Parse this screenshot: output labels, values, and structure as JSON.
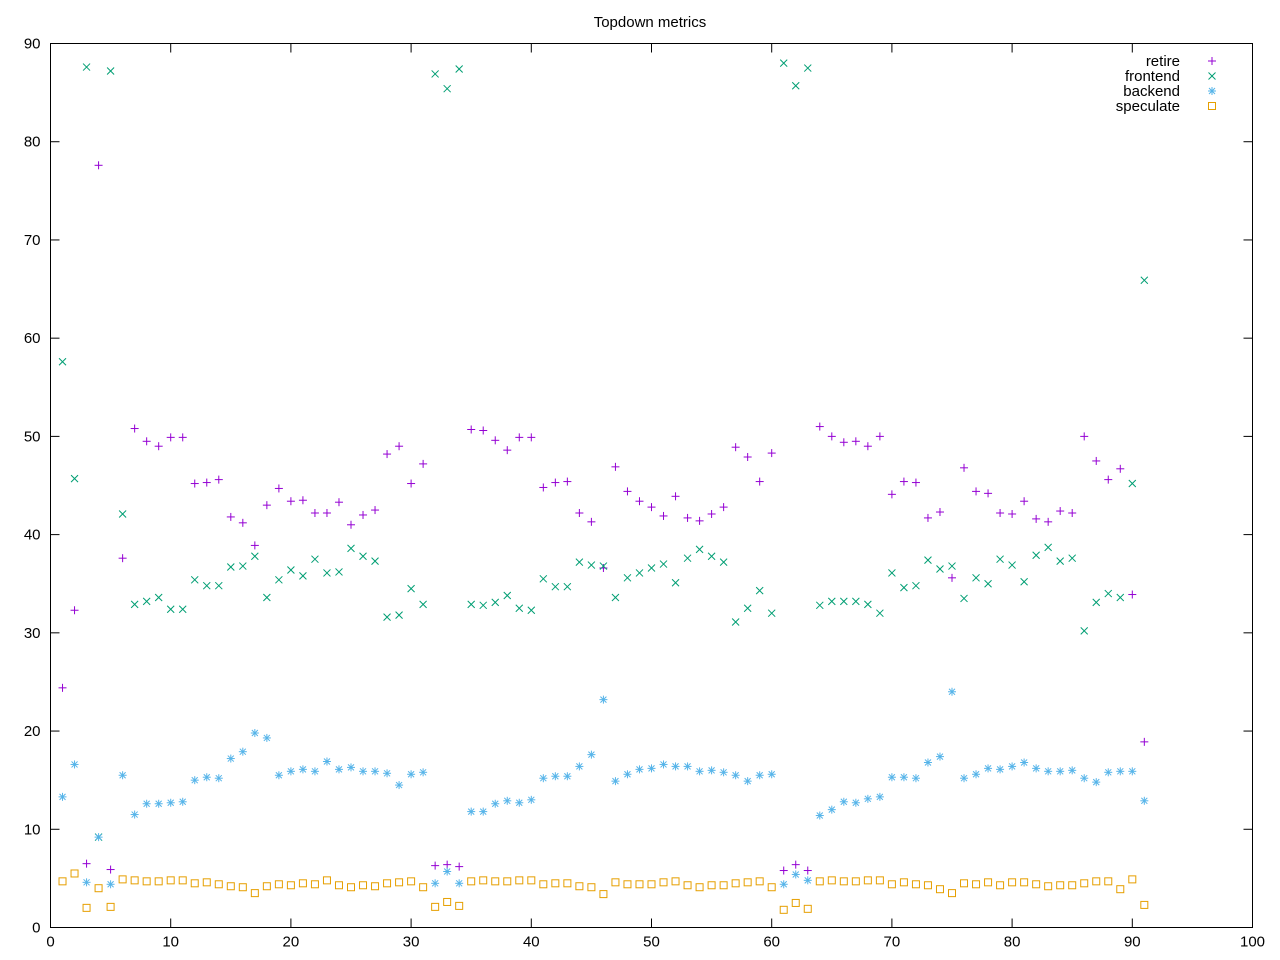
{
  "chart_data": {
    "type": "scatter",
    "title": "Topdown metrics",
    "xlabel": "",
    "ylabel": "",
    "xlim": [
      0,
      100
    ],
    "ylim": [
      0,
      90
    ],
    "xticks": [
      0,
      10,
      20,
      30,
      40,
      50,
      60,
      70,
      80,
      90,
      100
    ],
    "yticks": [
      0,
      10,
      20,
      30,
      40,
      50,
      60,
      70,
      80,
      90
    ],
    "grid": false,
    "legend_position": "top-right",
    "series": [
      {
        "name": "retire",
        "marker": "plus",
        "color": "#9400d3",
        "x": [
          1,
          2,
          3,
          4,
          5,
          6,
          7,
          8,
          9,
          10,
          11,
          12,
          13,
          14,
          15,
          16,
          17,
          18,
          19,
          20,
          21,
          22,
          23,
          24,
          25,
          26,
          27,
          28,
          29,
          30,
          31,
          32,
          33,
          34,
          35,
          36,
          37,
          38,
          39,
          40,
          41,
          42,
          43,
          44,
          45,
          46,
          47,
          48,
          49,
          50,
          51,
          52,
          53,
          54,
          55,
          56,
          57,
          58,
          59,
          60,
          61,
          62,
          63,
          64,
          65,
          66,
          67,
          68,
          69,
          70,
          71,
          72,
          73,
          74,
          75,
          76,
          77,
          78,
          79,
          80,
          81,
          82,
          83,
          84,
          85,
          86,
          87,
          88,
          89,
          90,
          91
        ],
        "y": [
          24.4,
          32.3,
          6.5,
          77.6,
          5.9,
          37.6,
          50.8,
          49.5,
          49.0,
          49.9,
          49.9,
          45.2,
          45.3,
          45.6,
          41.8,
          41.2,
          38.9,
          43.0,
          44.7,
          43.4,
          43.5,
          42.2,
          42.2,
          43.3,
          41.0,
          42.0,
          42.5,
          48.2,
          49.0,
          45.2,
          47.2,
          6.3,
          6.4,
          6.2,
          50.7,
          50.6,
          49.6,
          48.6,
          49.9,
          49.9,
          44.8,
          45.3,
          45.4,
          42.2,
          41.3,
          36.6,
          46.9,
          44.4,
          43.4,
          42.8,
          41.9,
          43.9,
          41.7,
          41.4,
          42.1,
          42.8,
          48.9,
          47.9,
          45.4,
          48.3,
          5.8,
          6.4,
          5.8,
          51.0,
          50.0,
          49.4,
          49.5,
          49.0,
          50.0,
          44.1,
          45.4,
          45.3,
          41.7,
          42.3,
          35.6,
          46.8,
          44.4,
          44.2,
          42.2,
          42.1,
          43.4,
          41.6,
          41.3,
          42.4,
          42.2,
          50.0,
          47.5,
          45.6,
          46.7,
          33.9,
          18.9
        ]
      },
      {
        "name": "frontend",
        "marker": "cross",
        "color": "#009e73",
        "x": [
          1,
          2,
          3,
          4,
          5,
          6,
          7,
          8,
          9,
          10,
          11,
          12,
          13,
          14,
          15,
          16,
          17,
          18,
          19,
          20,
          21,
          22,
          23,
          24,
          25,
          26,
          27,
          28,
          29,
          30,
          31,
          32,
          33,
          34,
          35,
          36,
          37,
          38,
          39,
          40,
          41,
          42,
          43,
          44,
          45,
          46,
          47,
          48,
          49,
          50,
          51,
          52,
          53,
          54,
          55,
          56,
          57,
          58,
          59,
          60,
          61,
          62,
          63,
          64,
          65,
          66,
          67,
          68,
          69,
          70,
          71,
          72,
          73,
          74,
          75,
          76,
          77,
          78,
          79,
          80,
          81,
          82,
          83,
          84,
          85,
          86,
          87,
          88,
          89,
          90,
          91
        ],
        "y": [
          57.6,
          45.7,
          87.6,
          9.2,
          87.2,
          42.1,
          32.9,
          33.2,
          33.6,
          32.4,
          32.4,
          35.4,
          34.8,
          34.8,
          36.7,
          36.8,
          37.8,
          33.6,
          35.4,
          36.4,
          35.8,
          37.5,
          36.1,
          36.2,
          38.6,
          37.8,
          37.3,
          31.6,
          31.8,
          34.5,
          32.9,
          86.9,
          85.4,
          87.4,
          32.9,
          32.8,
          33.1,
          33.8,
          32.5,
          32.3,
          35.5,
          34.7,
          34.7,
          37.2,
          36.9,
          36.8,
          33.6,
          35.6,
          36.1,
          36.6,
          37.0,
          35.1,
          37.6,
          38.5,
          37.8,
          37.2,
          31.1,
          32.5,
          34.3,
          32.0,
          88.0,
          85.7,
          87.5,
          32.8,
          33.2,
          33.2,
          33.2,
          32.9,
          32.0,
          36.1,
          34.6,
          34.8,
          37.4,
          36.5,
          36.8,
          33.5,
          35.6,
          35.0,
          37.5,
          36.9,
          35.2,
          37.9,
          38.7,
          37.3,
          37.6,
          30.2,
          33.1,
          34.0,
          33.6,
          45.2,
          65.9
        ]
      },
      {
        "name": "backend",
        "marker": "star",
        "color": "#56b4e9",
        "x": [
          1,
          2,
          3,
          4,
          5,
          6,
          7,
          8,
          9,
          10,
          11,
          12,
          13,
          14,
          15,
          16,
          17,
          18,
          19,
          20,
          21,
          22,
          23,
          24,
          25,
          26,
          27,
          28,
          29,
          30,
          31,
          32,
          33,
          34,
          35,
          36,
          37,
          38,
          39,
          40,
          41,
          42,
          43,
          44,
          45,
          46,
          47,
          48,
          49,
          50,
          51,
          52,
          53,
          54,
          55,
          56,
          57,
          58,
          59,
          60,
          61,
          62,
          63,
          64,
          65,
          66,
          67,
          68,
          69,
          70,
          71,
          72,
          73,
          74,
          75,
          76,
          77,
          78,
          79,
          80,
          81,
          82,
          83,
          84,
          85,
          86,
          87,
          88,
          89,
          90,
          91
        ],
        "y": [
          13.3,
          16.6,
          4.6,
          9.2,
          4.4,
          15.5,
          11.5,
          12.6,
          12.6,
          12.7,
          12.8,
          15.0,
          15.3,
          15.2,
          17.2,
          17.9,
          19.8,
          19.3,
          15.5,
          15.9,
          16.1,
          15.9,
          16.9,
          16.1,
          16.3,
          15.9,
          15.9,
          15.7,
          14.5,
          15.6,
          15.8,
          4.5,
          5.7,
          4.5,
          11.8,
          11.8,
          12.6,
          12.9,
          12.7,
          13.0,
          15.2,
          15.4,
          15.4,
          16.4,
          17.6,
          23.2,
          14.9,
          15.6,
          16.1,
          16.2,
          16.6,
          16.4,
          16.4,
          15.9,
          16.0,
          15.8,
          15.5,
          14.9,
          15.5,
          15.6,
          4.4,
          5.4,
          4.8,
          11.4,
          12.0,
          12.8,
          12.7,
          13.1,
          13.3,
          15.3,
          15.3,
          15.2,
          16.8,
          17.4,
          24.0,
          15.2,
          15.6,
          16.2,
          16.1,
          16.4,
          16.8,
          16.2,
          15.9,
          15.9,
          16.0,
          15.2,
          14.8,
          15.8,
          15.9,
          15.9,
          12.9
        ]
      },
      {
        "name": "speculate",
        "marker": "square",
        "color": "#e69f00",
        "x": [
          1,
          2,
          3,
          4,
          5,
          6,
          7,
          8,
          9,
          10,
          11,
          12,
          13,
          14,
          15,
          16,
          17,
          18,
          19,
          20,
          21,
          22,
          23,
          24,
          25,
          26,
          27,
          28,
          29,
          30,
          31,
          32,
          33,
          34,
          35,
          36,
          37,
          38,
          39,
          40,
          41,
          42,
          43,
          44,
          45,
          46,
          47,
          48,
          49,
          50,
          51,
          52,
          53,
          54,
          55,
          56,
          57,
          58,
          59,
          60,
          61,
          62,
          63,
          64,
          65,
          66,
          67,
          68,
          69,
          70,
          71,
          72,
          73,
          74,
          75,
          76,
          77,
          78,
          79,
          80,
          81,
          82,
          83,
          84,
          85,
          86,
          87,
          88,
          89,
          90,
          91
        ],
        "y": [
          4.7,
          5.5,
          2.0,
          4.0,
          2.1,
          4.9,
          4.8,
          4.7,
          4.7,
          4.8,
          4.8,
          4.5,
          4.6,
          4.4,
          4.2,
          4.1,
          3.5,
          4.2,
          4.4,
          4.3,
          4.5,
          4.4,
          4.8,
          4.3,
          4.1,
          4.3,
          4.2,
          4.5,
          4.6,
          4.7,
          4.1,
          2.1,
          2.6,
          2.2,
          4.7,
          4.8,
          4.7,
          4.7,
          4.8,
          4.8,
          4.4,
          4.5,
          4.5,
          4.2,
          4.1,
          3.4,
          4.6,
          4.4,
          4.4,
          4.4,
          4.6,
          4.7,
          4.3,
          4.1,
          4.3,
          4.3,
          4.5,
          4.6,
          4.7,
          4.1,
          1.8,
          2.5,
          1.9,
          4.7,
          4.8,
          4.7,
          4.7,
          4.8,
          4.8,
          4.4,
          4.6,
          4.4,
          4.3,
          3.9,
          3.5,
          4.5,
          4.4,
          4.6,
          4.3,
          4.6,
          4.6,
          4.4,
          4.2,
          4.3,
          4.3,
          4.5,
          4.7,
          4.7,
          3.9,
          4.9,
          2.3
        ]
      }
    ]
  }
}
